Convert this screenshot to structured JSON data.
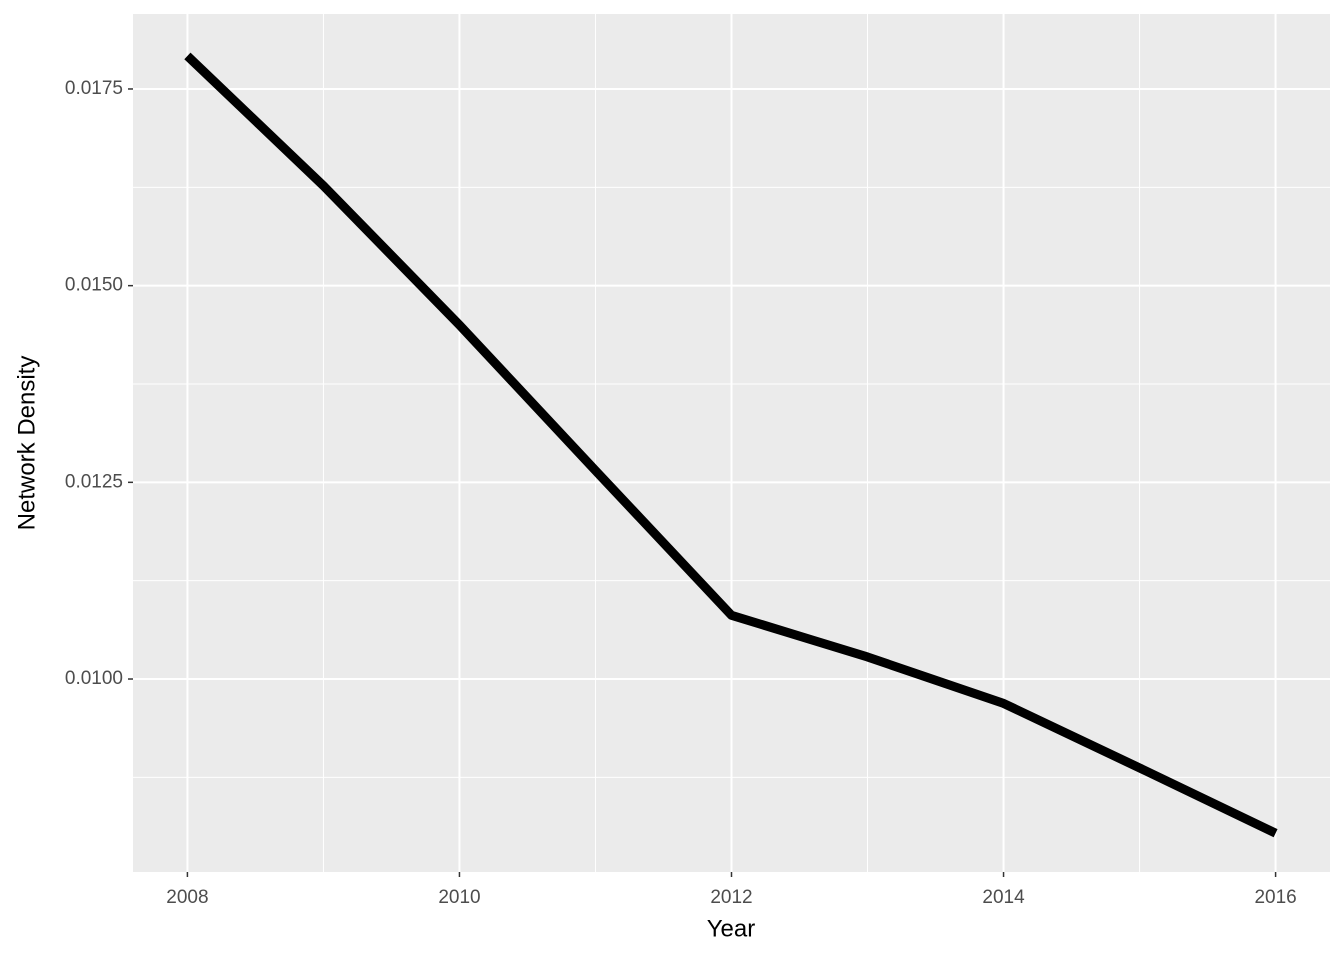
{
  "chart_data": {
    "type": "line",
    "x_label": "Year",
    "y_label": "Network Density",
    "x": [
      2008,
      2009,
      2010,
      2011,
      2012,
      2013,
      2014,
      2015,
      2016
    ],
    "series": [
      {
        "color": "#000000",
        "values": [
          0.01792,
          0.01627,
          0.0145,
          0.01265,
          0.01081,
          0.01028,
          0.00969,
          0.00887,
          0.00804
        ]
      }
    ],
    "xlim": [
      2007.6,
      2016.4
    ],
    "xticks": [
      2008,
      2010,
      2012,
      2014,
      2016
    ],
    "ylim": [
      0.007547,
      0.018453
    ],
    "yticks": [
      {
        "value": 0.01,
        "label": "0.0100"
      },
      {
        "value": 0.0125,
        "label": "0.0125"
      },
      {
        "value": 0.015,
        "label": "0.0150"
      },
      {
        "value": 0.0175,
        "label": "0.0175"
      }
    ],
    "grid": true
  }
}
